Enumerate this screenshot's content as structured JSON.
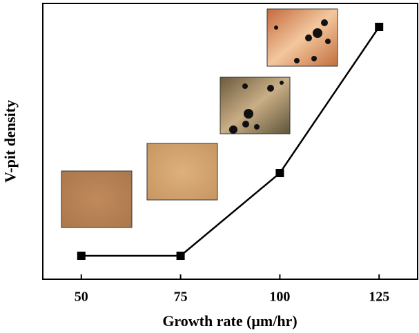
{
  "chart_data": {
    "type": "line",
    "x_label": "Growth rate (μm/hr)",
    "y_label": "V-pit density",
    "x": [
      50,
      75,
      100,
      125
    ],
    "values": [
      8.5,
      8.5,
      38.5,
      91.5
    ],
    "color": "#000000",
    "xlim": [
      40.3,
      134.7
    ],
    "xticks": [
      50,
      75,
      100,
      125
    ],
    "ylim": [
      0,
      100
    ]
  }
}
